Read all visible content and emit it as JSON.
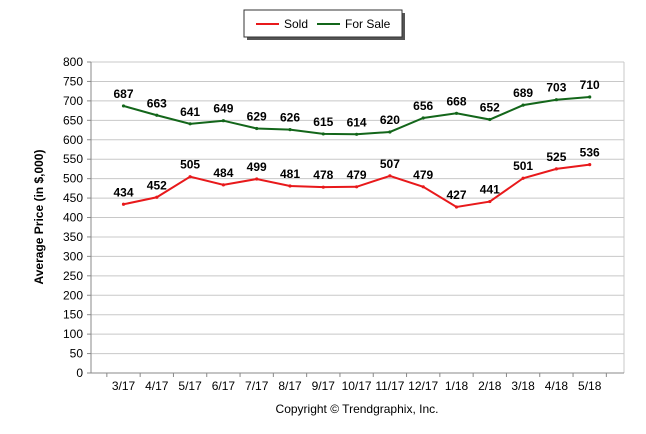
{
  "chart_data": {
    "type": "line",
    "categories": [
      "3/17",
      "4/17",
      "5/17",
      "6/17",
      "7/17",
      "8/17",
      "9/17",
      "10/17",
      "11/17",
      "12/17",
      "1/18",
      "2/18",
      "3/18",
      "4/18",
      "5/18"
    ],
    "series": [
      {
        "name": "Sold",
        "color": "#e8191b",
        "values": [
          434,
          452,
          505,
          484,
          499,
          481,
          478,
          479,
          507,
          479,
          427,
          441,
          501,
          525,
          536
        ]
      },
      {
        "name": "For Sale",
        "color": "#13661a",
        "values": [
          687,
          663,
          641,
          649,
          629,
          626,
          615,
          614,
          620,
          656,
          668,
          652,
          689,
          703,
          710
        ]
      }
    ],
    "ylabel": "Average Price (in $,000)",
    "xlabel": "",
    "ylim": [
      0,
      800
    ],
    "yticks": [
      0,
      50,
      100,
      150,
      200,
      250,
      300,
      350,
      400,
      450,
      500,
      550,
      600,
      650,
      700,
      750,
      800
    ],
    "grid": true,
    "legend": "top-center"
  },
  "credit": "Copyright © Trendgraphix, Inc."
}
